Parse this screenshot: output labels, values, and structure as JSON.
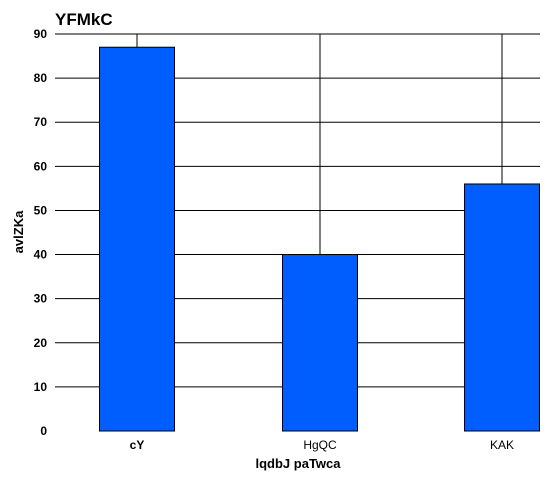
{
  "chart_data": {
    "type": "bar",
    "title": "YFMkC",
    "xlabel": "lqdbJ paTwca",
    "ylabel": "avlZKa",
    "categories": [
      "cY",
      "HgQC",
      "KAK"
    ],
    "values": [
      87,
      40,
      56
    ],
    "ylim": [
      0,
      90
    ],
    "yticks": [
      0,
      10,
      20,
      30,
      40,
      50,
      60,
      70,
      80,
      90
    ],
    "grid": true,
    "bar_color": "#005eff",
    "grid_color": "#000000"
  }
}
